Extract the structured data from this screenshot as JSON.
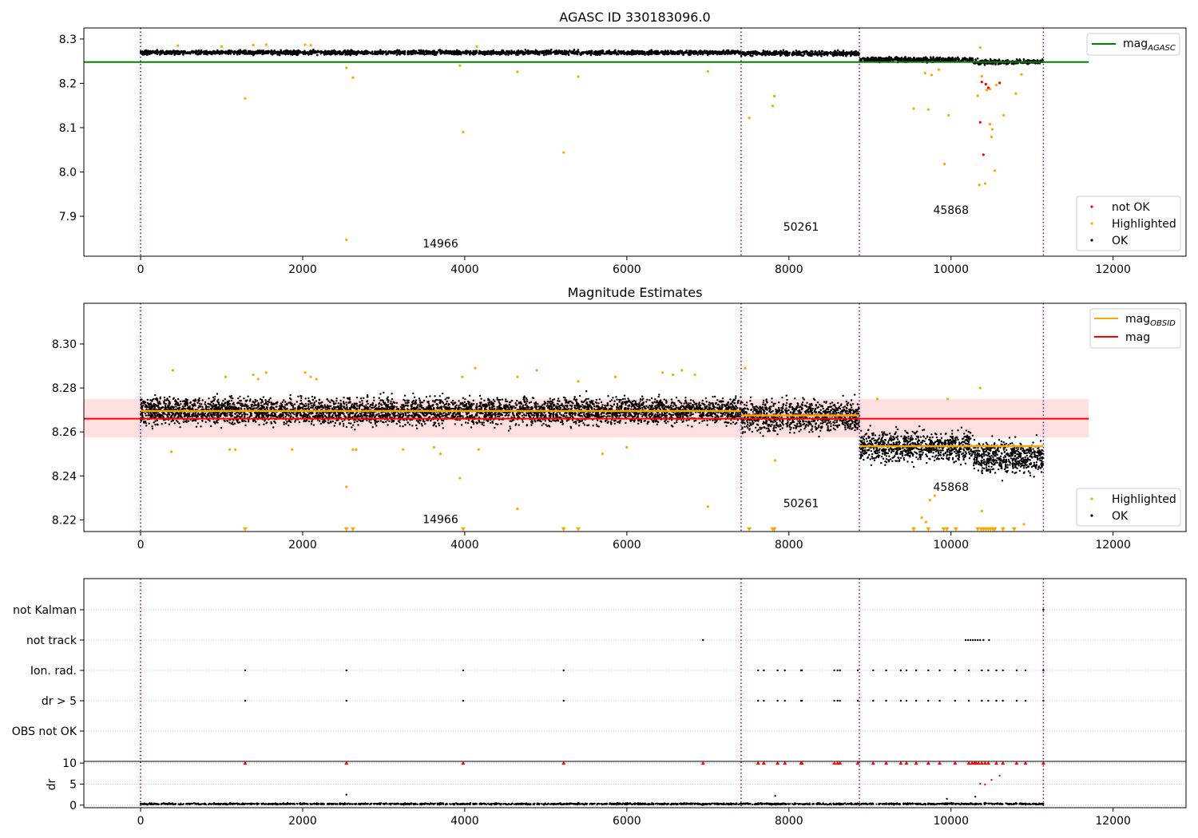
{
  "chart_data": [
    {
      "type": "scatter",
      "title": "AGASC ID 330183096.0",
      "xlabel": "",
      "ylabel": "",
      "xlim": [
        -700,
        12900
      ],
      "ylim": [
        7.81,
        8.325
      ],
      "xticks": [
        0,
        2000,
        4000,
        6000,
        8000,
        10000,
        12000
      ],
      "yticks": [
        7.9,
        8.0,
        8.1,
        8.2,
        8.3
      ],
      "ytick_labels": [
        "7.9",
        "8.0",
        "8.1",
        "8.2",
        "8.3"
      ],
      "grid": false,
      "legend_position": "upper-right and lower-right",
      "legend_line": [
        {
          "label": "mag",
          "sub": "AGASC",
          "color": "#008000"
        }
      ],
      "legend_points": [
        {
          "label": "not OK",
          "color": "#ff0000"
        },
        {
          "label": "Highlighted",
          "color": "#ffa500"
        },
        {
          "label": "OK",
          "color": "#000000"
        }
      ],
      "mag_agasc": 8.248,
      "obsid_boundaries": [
        0,
        7410,
        8870,
        11140
      ],
      "annotations": [
        {
          "text": "14966",
          "x": 3700,
          "y": 7.83
        },
        {
          "text": "50261",
          "x": 8150,
          "y": 7.868
        },
        {
          "text": "45868",
          "x": 10000,
          "y": 7.905
        }
      ],
      "series": [
        {
          "name": "OK",
          "segments": [
            {
              "x0": 0,
              "x1": 7410,
              "center": 8.2695,
              "spread": 0.014
            },
            {
              "x0": 7410,
              "x1": 8870,
              "center": 8.2675,
              "spread": 0.016
            },
            {
              "x0": 8870,
              "x1": 10270,
              "center": 8.2535,
              "spread": 0.016
            },
            {
              "x0": 10280,
              "x1": 11140,
              "center": 8.2485,
              "spread": 0.016
            }
          ]
        },
        {
          "name": "Highlighted",
          "points": [
            [
              460,
              8.285
            ],
            [
              1000,
              8.283
            ],
            [
              1290,
              8.166
            ],
            [
              1390,
              8.286
            ],
            [
              1550,
              8.287
            ],
            [
              2030,
              8.287
            ],
            [
              2100,
              8.286
            ],
            [
              2540,
              8.235
            ],
            [
              2540,
              7.847
            ],
            [
              2620,
              8.213
            ],
            [
              3940,
              8.24
            ],
            [
              3980,
              8.09
            ],
            [
              4150,
              8.283
            ],
            [
              4650,
              8.226
            ],
            [
              5220,
              8.044
            ],
            [
              5400,
              8.215
            ],
            [
              7000,
              8.227
            ],
            [
              7510,
              8.122
            ],
            [
              7800,
              8.149
            ],
            [
              7820,
              8.171
            ],
            [
              9540,
              8.143
            ],
            [
              9680,
              8.223
            ],
            [
              9720,
              8.141
            ],
            [
              9760,
              8.219
            ],
            [
              9850,
              8.231
            ],
            [
              9920,
              8.018
            ],
            [
              9970,
              8.128
            ],
            [
              10330,
              8.172
            ],
            [
              10350,
              7.971
            ],
            [
              10380,
              8.216
            ],
            [
              10420,
              7.974
            ],
            [
              10440,
              8.185
            ],
            [
              10480,
              8.187
            ],
            [
              10480,
              8.108
            ],
            [
              10500,
              8.079
            ],
            [
              10510,
              8.096
            ],
            [
              10540,
              8.003
            ],
            [
              10560,
              8.196
            ],
            [
              10650,
              8.128
            ],
            [
              10800,
              8.177
            ],
            [
              10870,
              8.22
            ],
            [
              10360,
              8.281
            ]
          ]
        },
        {
          "name": "not OK",
          "points": [
            [
              10360,
              8.112
            ],
            [
              10380,
              8.203
            ],
            [
              10400,
              8.039
            ],
            [
              10430,
              8.198
            ],
            [
              10460,
              8.19
            ],
            [
              10600,
              8.201
            ]
          ]
        }
      ]
    },
    {
      "type": "scatter",
      "title": "Magnitude Estimates",
      "xlabel": "",
      "ylabel": "",
      "xlim": [
        -700,
        12900
      ],
      "ylim": [
        8.2147,
        8.3185
      ],
      "xticks": [
        0,
        2000,
        4000,
        6000,
        8000,
        10000,
        12000
      ],
      "yticks": [
        8.22,
        8.24,
        8.26,
        8.28,
        8.3
      ],
      "ytick_labels": [
        "8.22",
        "8.24",
        "8.26",
        "8.28",
        "8.30"
      ],
      "grid": false,
      "legend_position": "upper-right and lower-right",
      "legend_line": [
        {
          "label": "mag",
          "sub": "OBSID",
          "color": "#ffa500"
        },
        {
          "label": "mag",
          "sub": "",
          "color": "#ff0000"
        }
      ],
      "legend_points": [
        {
          "label": "Highlighted",
          "color": "#ffa500"
        },
        {
          "label": "OK",
          "color": "#000000"
        }
      ],
      "mag": 8.266,
      "mag_band": [
        8.2575,
        8.2749
      ],
      "mag_obsid": [
        {
          "x0": 0,
          "x1": 7410,
          "value": 8.2695
        },
        {
          "x0": 7410,
          "x1": 8870,
          "value": 8.2675
        },
        {
          "x0": 8870,
          "x1": 11140,
          "value": 8.2535
        }
      ],
      "obsid_boundaries": [
        0,
        7410,
        8870,
        11140
      ],
      "annotations": [
        {
          "text": "14966",
          "x": 3700,
          "y": 8.2185
        },
        {
          "text": "50261",
          "x": 8150,
          "y": 8.2258
        },
        {
          "text": "45868",
          "x": 10000,
          "y": 8.2333
        }
      ],
      "series": [
        {
          "name": "OK",
          "segments": [
            {
              "x0": 0,
              "x1": 7410,
              "center": 8.2695,
              "spread": 0.014
            },
            {
              "x0": 7410,
              "x1": 8870,
              "center": 8.2672,
              "spread": 0.016
            },
            {
              "x0": 8870,
              "x1": 10270,
              "center": 8.2535,
              "spread": 0.016
            },
            {
              "x0": 10280,
              "x1": 11140,
              "center": 8.2485,
              "spread": 0.016
            }
          ]
        },
        {
          "name": "Highlighted",
          "points": [
            [
              380,
              8.251
            ],
            [
              400,
              8.288
            ],
            [
              1050,
              8.285
            ],
            [
              1100,
              8.252
            ],
            [
              1170,
              8.252
            ],
            [
              1390,
              8.286
            ],
            [
              1450,
              8.284
            ],
            [
              1550,
              8.287
            ],
            [
              1870,
              8.252
            ],
            [
              2030,
              8.287
            ],
            [
              2100,
              8.285
            ],
            [
              2170,
              8.284
            ],
            [
              2540,
              8.235
            ],
            [
              2620,
              8.252
            ],
            [
              2660,
              8.252
            ],
            [
              3240,
              8.252
            ],
            [
              3620,
              8.253
            ],
            [
              3700,
              8.25
            ],
            [
              3940,
              8.239
            ],
            [
              3970,
              8.285
            ],
            [
              4130,
              8.289
            ],
            [
              4170,
              8.252
            ],
            [
              4650,
              8.225
            ],
            [
              4650,
              8.285
            ],
            [
              4890,
              8.288
            ],
            [
              5400,
              8.283
            ],
            [
              5700,
              8.25
            ],
            [
              5860,
              8.285
            ],
            [
              6000,
              8.253
            ],
            [
              6440,
              8.287
            ],
            [
              6570,
              8.286
            ],
            [
              6680,
              8.288
            ],
            [
              6840,
              8.286
            ],
            [
              7000,
              8.226
            ],
            [
              7460,
              8.289
            ],
            [
              7830,
              8.247
            ],
            [
              9090,
              8.275
            ],
            [
              9640,
              8.221
            ],
            [
              9690,
              8.219
            ],
            [
              9740,
              8.229
            ],
            [
              9800,
              8.231
            ],
            [
              9960,
              8.275
            ],
            [
              10360,
              8.28
            ],
            [
              10380,
              8.224
            ],
            [
              10900,
              8.218
            ]
          ]
        },
        {
          "name": "Highlighted below range",
          "points": [
            [
              1290,
              8.2155
            ],
            [
              2540,
              8.2155
            ],
            [
              2620,
              8.2155
            ],
            [
              3980,
              8.2155
            ],
            [
              5220,
              8.2155
            ],
            [
              5400,
              8.2155
            ],
            [
              7510,
              8.2155
            ],
            [
              7800,
              8.2155
            ],
            [
              7820,
              8.2155
            ],
            [
              9540,
              8.2155
            ],
            [
              9720,
              8.2155
            ],
            [
              9910,
              8.2155
            ],
            [
              9950,
              8.2155
            ],
            [
              10060,
              8.2155
            ],
            [
              10330,
              8.2155
            ],
            [
              10370,
              8.2155
            ],
            [
              10400,
              8.2155
            ],
            [
              10430,
              8.2155
            ],
            [
              10460,
              8.2155
            ],
            [
              10490,
              8.2155
            ],
            [
              10520,
              8.2155
            ],
            [
              10540,
              8.2155
            ],
            [
              10640,
              8.2155
            ],
            [
              10780,
              8.2155
            ]
          ]
        }
      ]
    },
    {
      "type": "scatter",
      "title": "",
      "xlabel": "",
      "ylabel": "",
      "xlim": [
        -700,
        12900
      ],
      "xticks": [
        0,
        2000,
        4000,
        6000,
        8000,
        10000,
        12000
      ],
      "grid": true,
      "obsid_boundaries": [
        0,
        7410,
        8870,
        11140
      ],
      "flag_categories": [
        "not Kalman",
        "not track",
        "Ion. rad.",
        "dr > 5",
        "OBS not OK"
      ],
      "flag_events": {
        "not Kalman": [
          11140
        ],
        "not track": [
          6940,
          10180,
          10210,
          10240,
          10270,
          10300,
          10330,
          10360,
          10400,
          10470
        ],
        "Ion. rad.": [
          1290,
          2540,
          3980,
          5220,
          7620,
          7690,
          7860,
          7950,
          8150,
          8160,
          8560,
          8600,
          8630,
          8850,
          9040,
          9200,
          9380,
          9450,
          9570,
          9720,
          9860,
          10050,
          10220,
          10380,
          10460,
          10560,
          10640,
          10810,
          10920,
          11140
        ],
        "dr > 5": [
          1290,
          2540,
          3980,
          5220,
          7620,
          7690,
          7860,
          7950,
          8150,
          8160,
          8560,
          8600,
          8630,
          8850,
          9040,
          9200,
          9380,
          9450,
          9570,
          9720,
          9860,
          10050,
          10220,
          10380,
          10460,
          10560,
          10640,
          10810,
          10920,
          11140
        ],
        "OBS not OK": []
      },
      "dr_panel": {
        "ylabel": "dr",
        "ylim": [
          -0.6,
          10.4
        ],
        "yticks": [
          0,
          5,
          10
        ],
        "ytick_labels": [
          "0",
          "5",
          "10"
        ],
        "clipped_at": 10,
        "clipped_points": [
          1290,
          2540,
          3980,
          5220,
          6940,
          7620,
          7690,
          7860,
          7950,
          8150,
          8160,
          8560,
          8600,
          8630,
          8850,
          9040,
          9200,
          9380,
          9450,
          9570,
          9720,
          9860,
          10050,
          10220,
          10260,
          10290,
          10310,
          10340,
          10380,
          10420,
          10460,
          10560,
          10640,
          10810,
          10920,
          11140
        ],
        "outlier_points": [
          [
            10360,
            5.1
          ],
          [
            10420,
            4.9
          ],
          [
            10500,
            6.0
          ],
          [
            10600,
            7.0
          ],
          [
            2540,
            2.5
          ],
          [
            7830,
            2.2
          ],
          [
            9950,
            1.5
          ],
          [
            10300,
            2.0
          ]
        ],
        "baseline": 0.3,
        "baseline_spread": 0.35
      }
    }
  ]
}
